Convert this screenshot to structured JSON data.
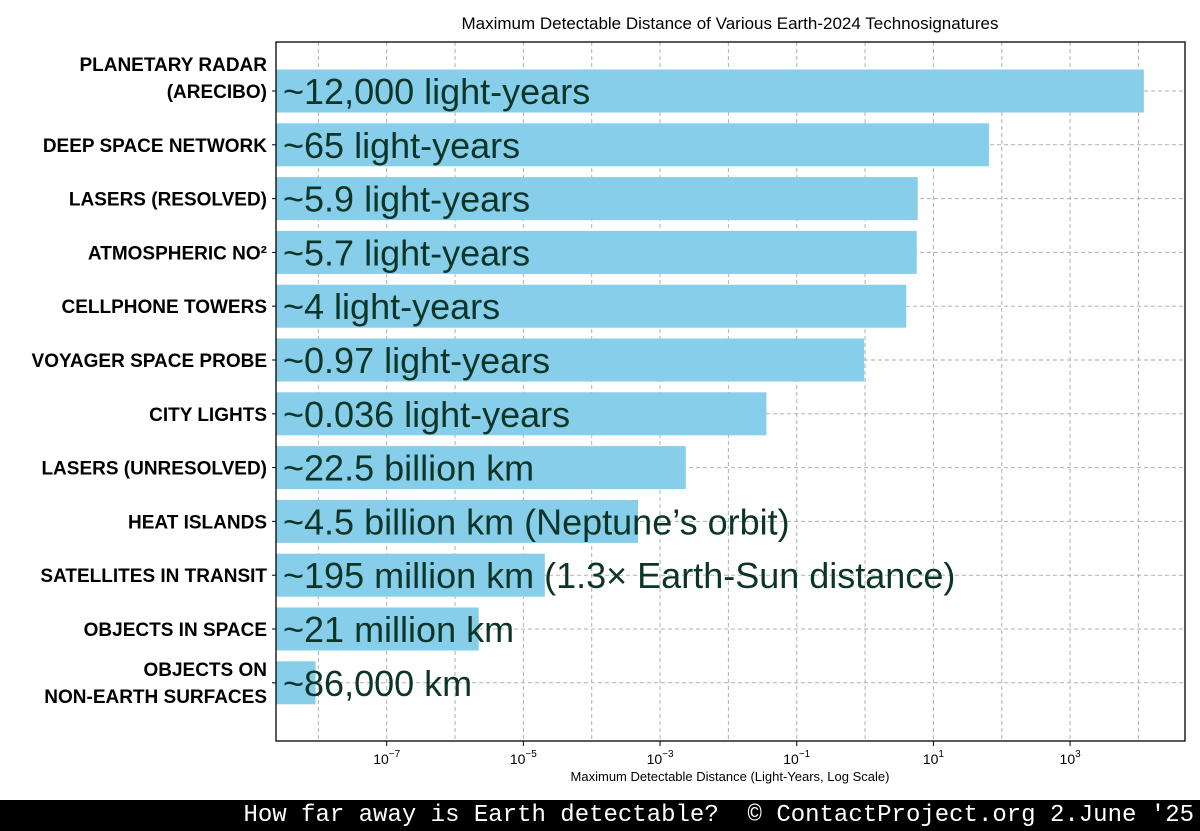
{
  "chart_data": {
    "type": "bar",
    "orientation": "horizontal",
    "title": "Maximum Detectable Distance of Various Earth-2024 Technosignatures",
    "xlabel": "Maximum Detectable Distance (Light-Years, Log Scale)",
    "ylabel": "",
    "xscale": "log",
    "xlim": [
      2.4e-09,
      48000
    ],
    "grid": true,
    "bar_color": "#87ceeb",
    "label_color": "#0b3526",
    "x_ticks": [
      {
        "base": "10",
        "exp": "−7",
        "value": 1e-07
      },
      {
        "base": "10",
        "exp": "−5",
        "value": 1e-05
      },
      {
        "base": "10",
        "exp": "−3",
        "value": 0.001
      },
      {
        "base": "10",
        "exp": "−1",
        "value": 0.1
      },
      {
        "base": "10",
        "exp": "1",
        "value": 10
      },
      {
        "base": "10",
        "exp": "3",
        "value": 1000
      }
    ],
    "categories": [
      [
        "PLANETARY RADAR",
        "(ARECIBO)"
      ],
      [
        "DEEP SPACE NETWORK"
      ],
      [
        "LASERS (RESOLVED)"
      ],
      [
        "ATMOSPHERIC NO²"
      ],
      [
        "CELLPHONE TOWERS"
      ],
      [
        "VOYAGER SPACE PROBE"
      ],
      [
        "CITY LIGHTS"
      ],
      [
        "LASERS (UNRESOLVED)"
      ],
      [
        "HEAT ISLANDS"
      ],
      [
        "SATELLITES IN TRANSIT"
      ],
      [
        "OBJECTS IN SPACE"
      ],
      [
        "OBJECTS ON",
        "NON-EARTH SURFACES"
      ]
    ],
    "values": [
      12000,
      65,
      5.9,
      5.7,
      4,
      0.97,
      0.036,
      0.00238,
      0.000476,
      2.06e-05,
      2.22e-06,
      9.1e-09
    ],
    "data_labels": [
      "~12,000 light-years",
      "~65 light-years",
      "~5.9 light-years",
      "~5.7 light-years",
      "~4 light-years",
      "~0.97 light-years",
      "~0.036 light-years",
      "~22.5 billion km",
      "~4.5 billion km (Neptune’s orbit)",
      "~195 million km (1.3× Earth-Sun distance)",
      "~21 million km",
      "~86,000 km"
    ]
  },
  "footer": "How far away is Earth detectable?  © ContactProject.org 2.June '25"
}
